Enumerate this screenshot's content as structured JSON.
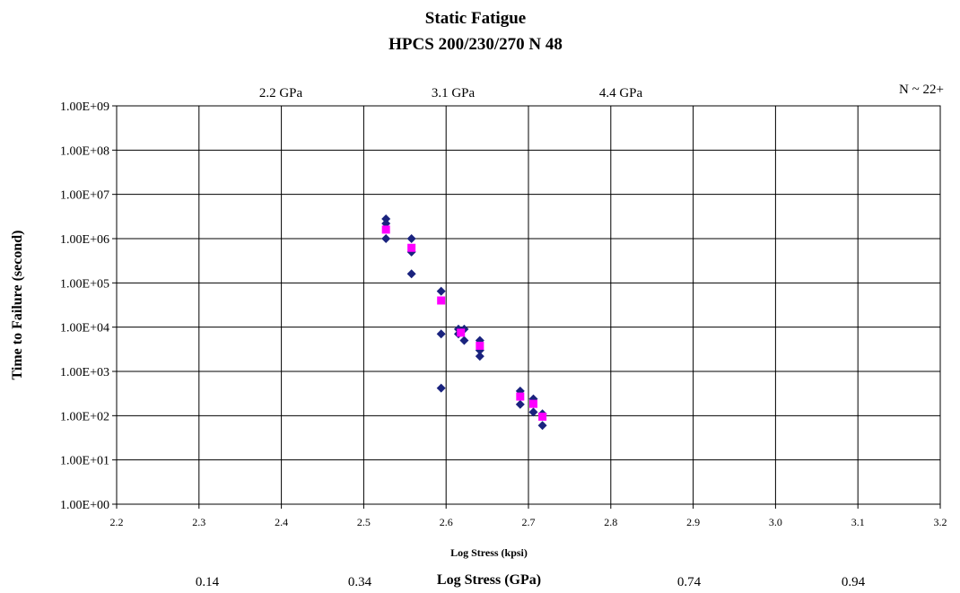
{
  "chart_data": {
    "type": "scatter",
    "title": "Static Fatigue",
    "subtitle": "HPCS 200/230/270 N  48",
    "xlabel": "Log Stress (kpsi)",
    "ylabel": "Time to Failure (second)",
    "xlabel_secondary": "Log Stress (GPa)",
    "xlim": [
      2.2,
      3.2
    ],
    "ylim": [
      1,
      1000000000
    ],
    "yscale": "log",
    "grid": true,
    "x_ticks": [
      "2.2",
      "2.3",
      "2.4",
      "2.5",
      "2.6",
      "2.7",
      "2.8",
      "2.9",
      "3.0",
      "3.1",
      "3.2"
    ],
    "y_ticks": [
      "1.00E+00",
      "1.00E+01",
      "1.00E+02",
      "1.00E+03",
      "1.00E+04",
      "1.00E+05",
      "1.00E+06",
      "1.00E+07",
      "1.00E+08",
      "1.00E+09"
    ],
    "top_annotations": [
      "2.2 GPa",
      "3.1 GPa",
      "4.4 GPa",
      "N ~ 22+"
    ],
    "bottom_ticks_secondary": [
      "0.14",
      "0.34",
      "0.74",
      "0.94"
    ],
    "series": [
      {
        "color": "#1a237e",
        "marker": "diamond",
        "points": [
          [
            2.527,
            2800000
          ],
          [
            2.527,
            2200000
          ],
          [
            2.527,
            1000000
          ],
          [
            2.558,
            1000000
          ],
          [
            2.558,
            500000
          ],
          [
            2.558,
            160000
          ],
          [
            2.594,
            65000
          ],
          [
            2.594,
            7000
          ],
          [
            2.594,
            420
          ],
          [
            2.615,
            9000
          ],
          [
            2.615,
            7000
          ],
          [
            2.622,
            9000
          ],
          [
            2.622,
            5000
          ],
          [
            2.641,
            5000
          ],
          [
            2.641,
            3000
          ],
          [
            2.641,
            2200
          ],
          [
            2.69,
            360
          ],
          [
            2.69,
            180
          ],
          [
            2.706,
            240
          ],
          [
            2.706,
            120
          ],
          [
            2.717,
            110
          ],
          [
            2.717,
            60
          ]
        ]
      },
      {
        "color": "#ff00ff",
        "marker": "square",
        "points": [
          [
            2.527,
            1600000
          ],
          [
            2.558,
            620000
          ],
          [
            2.594,
            40000
          ],
          [
            2.618,
            7500
          ],
          [
            2.641,
            3800
          ],
          [
            2.69,
            270
          ],
          [
            2.706,
            185
          ],
          [
            2.717,
            95
          ]
        ]
      }
    ]
  }
}
